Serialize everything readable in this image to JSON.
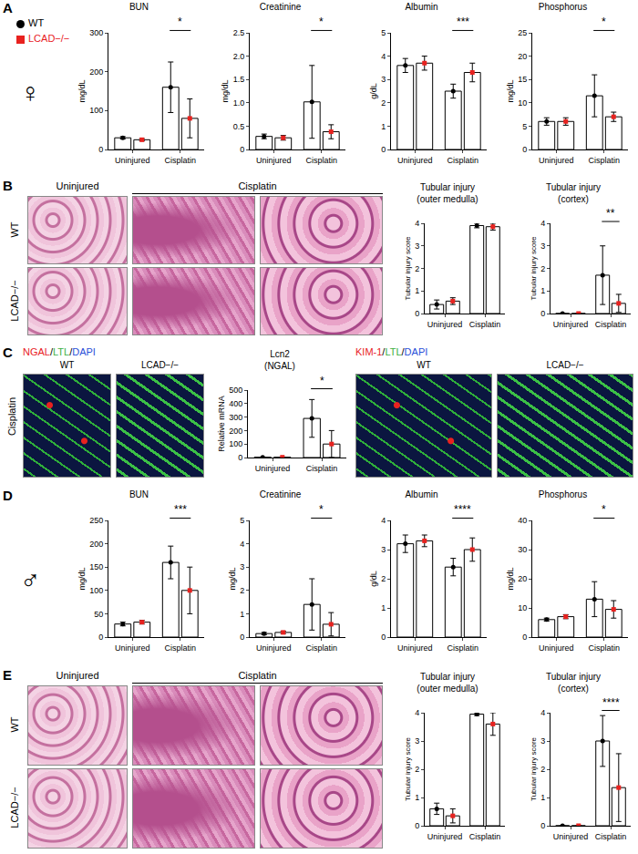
{
  "legend_items": [
    {
      "name": "WT",
      "color": "#000000",
      "marker": "circle"
    },
    {
      "name": "LCAD−/−",
      "color": "#e8221f",
      "marker": "square"
    }
  ],
  "sex_labels": {
    "A": "♀",
    "D": "♂"
  },
  "image_panels": [
    {
      "panel": "B",
      "kind": "histology",
      "columns": [
        "Uninjured",
        "Cisplatin"
      ],
      "rows": [
        "WT",
        "LCAD−/−"
      ]
    },
    {
      "panel": "C",
      "kind": "fluorescence",
      "row_label": "Cisplatin",
      "groups": [
        {
          "stain": [
            {
              "text": "NGAL",
              "color": "#e8221f"
            },
            {
              "text": "LTL",
              "color": "#3cb043"
            },
            {
              "text": "DAPI",
              "color": "#2b50d8"
            }
          ],
          "separator": "/",
          "columns": [
            "WT",
            "LCAD−/−"
          ]
        },
        {
          "stain": [
            {
              "text": "KIM-1",
              "color": "#e8221f"
            },
            {
              "text": "LTL",
              "color": "#3cb043"
            },
            {
              "text": "DAPI",
              "color": "#2b50d8"
            }
          ],
          "separator": "/",
          "columns": [
            "WT",
            "LCAD−/−"
          ]
        }
      ]
    },
    {
      "panel": "E",
      "kind": "histology",
      "columns": [
        "Uninjured",
        "Cisplatin"
      ],
      "rows": [
        "WT",
        "LCAD−/−"
      ]
    }
  ],
  "chart_data": [
    {
      "panel": "A",
      "type": "bar",
      "title": "BUN",
      "y_label": "mg/dL",
      "grid": false,
      "categories": [
        "Uninjured",
        "Cisplatin"
      ],
      "series": [
        {
          "name": "WT",
          "color": "#000000",
          "marker": "circle",
          "values": [
            30,
            160
          ],
          "error": [
            3,
            65
          ]
        },
        {
          "name": "LCAD−/−",
          "color": "#e8221f",
          "marker": "square",
          "values": [
            25,
            80
          ],
          "error": [
            3,
            50
          ]
        }
      ],
      "ylim": [
        0,
        300
      ],
      "yticks": [
        0,
        100,
        200,
        300
      ],
      "annotations": [
        {
          "category": "Cisplatin",
          "text": "*"
        }
      ]
    },
    {
      "panel": "A",
      "type": "bar",
      "title": "Creatinine",
      "y_label": "mg/dL",
      "grid": false,
      "categories": [
        "Uninjured",
        "Cisplatin"
      ],
      "series": [
        {
          "name": "WT",
          "color": "#000000",
          "marker": "circle",
          "values": [
            0.28,
            1.02
          ],
          "error": [
            0.05,
            0.78
          ]
        },
        {
          "name": "LCAD−/−",
          "color": "#e8221f",
          "marker": "square",
          "values": [
            0.25,
            0.38
          ],
          "error": [
            0.05,
            0.15
          ]
        }
      ],
      "ylim": [
        0,
        2.5
      ],
      "yticks": [
        0,
        0.5,
        {
          "value": 1,
          "label": "1.0"
        },
        1.5,
        {
          "value": 2,
          "label": "2.0"
        },
        2.5
      ],
      "annotations": [
        {
          "category": "Cisplatin",
          "text": "*"
        }
      ]
    },
    {
      "panel": "A",
      "type": "bar",
      "title": "Albumin",
      "y_label": "g/dL",
      "grid": false,
      "categories": [
        "Uninjured",
        "Cisplatin"
      ],
      "series": [
        {
          "name": "WT",
          "color": "#000000",
          "marker": "circle",
          "values": [
            3.6,
            2.5
          ],
          "error": [
            0.3,
            0.3
          ]
        },
        {
          "name": "LCAD−/−",
          "color": "#e8221f",
          "marker": "square",
          "values": [
            3.7,
            3.3
          ],
          "error": [
            0.3,
            0.4
          ]
        }
      ],
      "ylim": [
        0,
        5
      ],
      "yticks": [
        0,
        1,
        2,
        3,
        4,
        5
      ],
      "annotations": [
        {
          "category": "Cisplatin",
          "text": "***"
        }
      ]
    },
    {
      "panel": "A",
      "type": "bar",
      "title": "Phosphorus",
      "y_label": "mg/dL",
      "grid": false,
      "categories": [
        "Uninjured",
        "Cisplatin"
      ],
      "series": [
        {
          "name": "WT",
          "color": "#000000",
          "marker": "circle",
          "values": [
            6,
            11.5
          ],
          "error": [
            0.8,
            4.5
          ]
        },
        {
          "name": "LCAD−/−",
          "color": "#e8221f",
          "marker": "square",
          "values": [
            6,
            7
          ],
          "error": [
            0.8,
            1
          ]
        }
      ],
      "ylim": [
        0,
        25
      ],
      "yticks": [
        0,
        5,
        10,
        15,
        20,
        25
      ],
      "annotations": [
        {
          "category": "Cisplatin",
          "text": "*"
        }
      ]
    },
    {
      "panel": "B",
      "type": "bar",
      "title": "Tubular injury (outer medulla)",
      "y_label": "Tubular injury score",
      "grid": false,
      "categories": [
        "Uninjured",
        "Cisplatin"
      ],
      "series": [
        {
          "name": "WT",
          "color": "#000000",
          "marker": "circle",
          "values": [
            0.4,
            3.9
          ],
          "error": [
            0.2,
            0.1
          ]
        },
        {
          "name": "LCAD−/−",
          "color": "#e8221f",
          "marker": "square",
          "values": [
            0.55,
            3.85
          ],
          "error": [
            0.15,
            0.15
          ]
        }
      ],
      "ylim": [
        0,
        4
      ],
      "yticks": [
        0,
        1,
        2,
        3,
        4
      ],
      "annotations": []
    },
    {
      "panel": "B",
      "type": "bar",
      "title": "Tubular injury (cortex)",
      "y_label": "Tubular injury score",
      "grid": false,
      "categories": [
        "Uninjured",
        "Cisplatin"
      ],
      "series": [
        {
          "name": "WT",
          "color": "#000000",
          "marker": "circle",
          "values": [
            0,
            1.7
          ],
          "error": [
            0,
            1.3
          ]
        },
        {
          "name": "LCAD−/−",
          "color": "#e8221f",
          "marker": "square",
          "values": [
            0,
            0.45
          ],
          "error": [
            0,
            0.4
          ]
        }
      ],
      "ylim": [
        0,
        4
      ],
      "yticks": [
        0,
        1,
        2,
        3,
        4
      ],
      "annotations": [
        {
          "category": "Cisplatin",
          "text": "**"
        }
      ]
    },
    {
      "panel": "C",
      "type": "bar",
      "title": "Lcn2 (NGAL)",
      "y_label": "Relative mRNA",
      "grid": false,
      "categories": [
        "Uninjured",
        "Cisplatin"
      ],
      "series": [
        {
          "name": "WT",
          "color": "#000000",
          "marker": "circle",
          "values": [
            2,
            290
          ],
          "error": [
            1,
            140
          ]
        },
        {
          "name": "LCAD−/−",
          "color": "#e8221f",
          "marker": "square",
          "values": [
            2,
            100
          ],
          "error": [
            1,
            100
          ]
        }
      ],
      "ylim": [
        0,
        500
      ],
      "yticks": [
        0,
        100,
        200,
        300,
        400,
        500
      ],
      "annotations": [
        {
          "category": "Cisplatin",
          "text": "*"
        }
      ]
    },
    {
      "panel": "D",
      "type": "bar",
      "title": "BUN",
      "y_label": "mg/dL",
      "grid": false,
      "categories": [
        "Uninjured",
        "Cisplatin"
      ],
      "series": [
        {
          "name": "WT",
          "color": "#000000",
          "marker": "circle",
          "values": [
            28,
            160
          ],
          "error": [
            4,
            35
          ]
        },
        {
          "name": "LCAD−/−",
          "color": "#e8221f",
          "marker": "square",
          "values": [
            32,
            100
          ],
          "error": [
            4,
            50
          ]
        }
      ],
      "ylim": [
        0,
        250
      ],
      "yticks": [
        0,
        50,
        100,
        150,
        200,
        250
      ],
      "annotations": [
        {
          "category": "Cisplatin",
          "text": "***"
        }
      ]
    },
    {
      "panel": "D",
      "type": "bar",
      "title": "Creatinine",
      "y_label": "mg/dL",
      "grid": false,
      "categories": [
        "Uninjured",
        "Cisplatin"
      ],
      "series": [
        {
          "name": "WT",
          "color": "#000000",
          "marker": "circle",
          "values": [
            0.15,
            1.4
          ],
          "error": [
            0.05,
            1.1
          ]
        },
        {
          "name": "LCAD−/−",
          "color": "#e8221f",
          "marker": "square",
          "values": [
            0.2,
            0.55
          ],
          "error": [
            0.05,
            0.5
          ]
        }
      ],
      "ylim": [
        0,
        5
      ],
      "yticks": [
        0,
        1,
        2,
        3,
        4,
        5
      ],
      "annotations": [
        {
          "category": "Cisplatin",
          "text": "*"
        }
      ]
    },
    {
      "panel": "D",
      "type": "bar",
      "title": "Albumin",
      "y_label": "g/dL",
      "grid": false,
      "categories": [
        "Uninjured",
        "Cisplatin"
      ],
      "series": [
        {
          "name": "WT",
          "color": "#000000",
          "marker": "circle",
          "values": [
            3.2,
            2.4
          ],
          "error": [
            0.3,
            0.3
          ]
        },
        {
          "name": "LCAD−/−",
          "color": "#e8221f",
          "marker": "square",
          "values": [
            3.3,
            3.0
          ],
          "error": [
            0.2,
            0.4
          ]
        }
      ],
      "ylim": [
        0,
        4
      ],
      "yticks": [
        0,
        1,
        2,
        3,
        4
      ],
      "annotations": [
        {
          "category": "Cisplatin",
          "text": "****"
        }
      ]
    },
    {
      "panel": "D",
      "type": "bar",
      "title": "Phosphorus",
      "y_label": "mg/dL",
      "grid": false,
      "categories": [
        "Uninjured",
        "Cisplatin"
      ],
      "series": [
        {
          "name": "WT",
          "color": "#000000",
          "marker": "circle",
          "values": [
            6,
            13
          ],
          "error": [
            0.5,
            6
          ]
        },
        {
          "name": "LCAD−/−",
          "color": "#e8221f",
          "marker": "square",
          "values": [
            7,
            9.5
          ],
          "error": [
            0.7,
            3
          ]
        }
      ],
      "ylim": [
        0,
        40
      ],
      "yticks": [
        0,
        10,
        20,
        30,
        40
      ],
      "annotations": [
        {
          "category": "Cisplatin",
          "text": "*"
        }
      ]
    },
    {
      "panel": "E",
      "type": "bar",
      "title": "Tubular injury (outer medulla)",
      "y_label": "Tubular injury score",
      "grid": false,
      "categories": [
        "Uninjured",
        "Cisplatin"
      ],
      "series": [
        {
          "name": "WT",
          "color": "#000000",
          "marker": "circle",
          "values": [
            0.6,
            3.95
          ],
          "error": [
            0.2,
            0.05
          ]
        },
        {
          "name": "LCAD−/−",
          "color": "#e8221f",
          "marker": "square",
          "values": [
            0.35,
            3.6
          ],
          "error": [
            0.25,
            0.4
          ]
        }
      ],
      "ylim": [
        0,
        4
      ],
      "yticks": [
        0,
        1,
        2,
        3,
        4
      ],
      "annotations": []
    },
    {
      "panel": "E",
      "type": "bar",
      "title": "Tubular injury (cortex)",
      "y_label": "Tubular injury score",
      "grid": false,
      "categories": [
        "Uninjured",
        "Cisplatin"
      ],
      "series": [
        {
          "name": "WT",
          "color": "#000000",
          "marker": "circle",
          "values": [
            0,
            3
          ],
          "error": [
            0,
            0.9
          ]
        },
        {
          "name": "LCAD−/−",
          "color": "#e8221f",
          "marker": "square",
          "values": [
            0,
            1.35
          ],
          "error": [
            0,
            1.2
          ]
        }
      ],
      "ylim": [
        0,
        4
      ],
      "yticks": [
        0,
        1,
        2,
        3,
        4
      ],
      "annotations": [
        {
          "category": "Cisplatin",
          "text": "****"
        }
      ]
    }
  ]
}
